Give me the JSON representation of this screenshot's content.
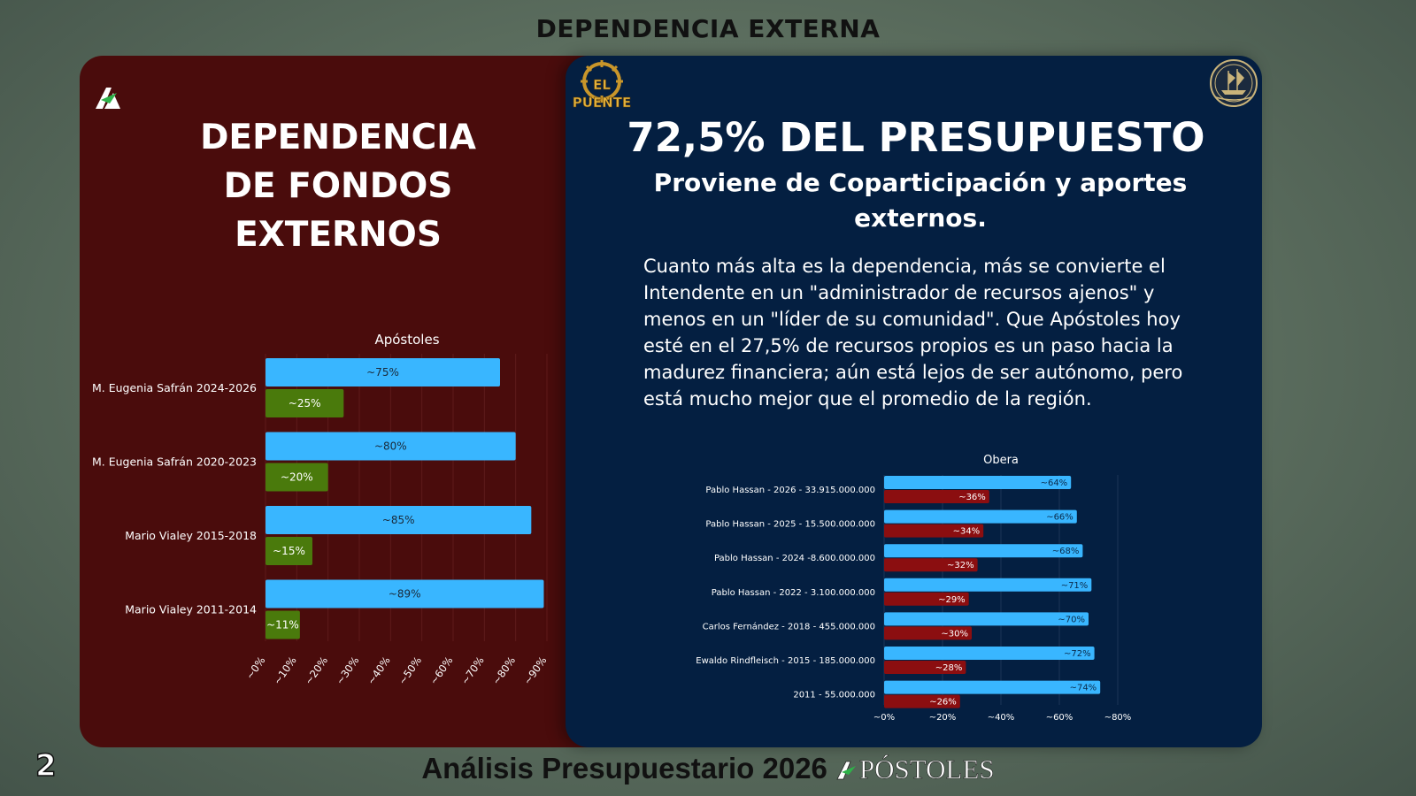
{
  "page_title": "DEPENDENCIA EXTERNA",
  "left_panel": {
    "heading_lines": [
      "DEPENDENCIA",
      "DE FONDOS",
      "EXTERNOS"
    ]
  },
  "right_panel": {
    "heading": "72,5% DEL PRESUPUESTO",
    "subheading": "Proviene de Coparticipación y aportes externos.",
    "body": "Cuanto más alta es la dependencia, más se convierte el Intendente en un \"administrador de recursos ajenos\" y menos en un \"líder de su comunidad\". Que Apóstoles hoy esté en el 27,5% de recursos propios es un paso hacia la madurez financiera; aún está lejos de ser autónomo, pero está mucho mejor que el promedio de la región.",
    "logo_text": [
      "EL",
      "PUENTE"
    ]
  },
  "footer": {
    "page_number": "2",
    "text": "Análisis Presupuestario 2026",
    "brand": "PÓSTOLES"
  },
  "colors": {
    "left_card": "#4a0c0c",
    "right_card": "#041f41",
    "external_bar": "#39b6ff",
    "own_bar_apostoles": "#4a7a0c",
    "own_bar_obera": "#8b0e10"
  },
  "chart_data": [
    {
      "type": "bar",
      "orientation": "horizontal",
      "title": "Apóstoles",
      "categories": [
        "M. Eugenia Safrán 2024-2026",
        "M. Eugenia Safrán 2020-2023",
        "Mario Vialey 2015-2018",
        "Mario Vialey 2011-2014"
      ],
      "series": [
        {
          "values": [
            75,
            80,
            85,
            89
          ],
          "labels": [
            "~75%",
            "~80%",
            "~85%",
            "~89%"
          ]
        },
        {
          "values": [
            25,
            20,
            15,
            11
          ],
          "labels": [
            "~25%",
            "~20%",
            "~15%",
            "~11%"
          ]
        }
      ],
      "ticks": [
        "~0%",
        "~10%",
        "~20%",
        "~30%",
        "~40%",
        "~50%",
        "~60%",
        "~70%",
        "~80%",
        "~90%"
      ],
      "xlim": [
        0,
        90
      ],
      "grid": true
    },
    {
      "type": "bar",
      "orientation": "horizontal",
      "title": "Obera",
      "categories": [
        "Pablo Hassan - 2026 - 33.915.000.000",
        "Pablo Hassan - 2025 - 15.500.000.000",
        "Pablo Hassan - 2024 -8.600.000.000",
        "Pablo Hassan - 2022 - 3.100.000.000",
        "Carlos Fernández - 2018 - 455.000.000",
        "Ewaldo Rindfleisch - 2015 - 185.000.000",
        "2011 - 55.000.000"
      ],
      "series": [
        {
          "values": [
            64,
            66,
            68,
            71,
            70,
            72,
            74
          ],
          "labels": [
            "~64%",
            "~66%",
            "~68%",
            "~71%",
            "~70%",
            "~72%",
            "~74%"
          ]
        },
        {
          "values": [
            36,
            34,
            32,
            29,
            30,
            28,
            26
          ],
          "labels": [
            "~36%",
            "~34%",
            "~32%",
            "~29%",
            "~30%",
            "~28%",
            "~26%"
          ]
        }
      ],
      "ticks": [
        "~0%",
        "~20%",
        "~40%",
        "~60%",
        "~80%"
      ],
      "xlim": [
        0,
        80
      ],
      "grid": true
    }
  ]
}
